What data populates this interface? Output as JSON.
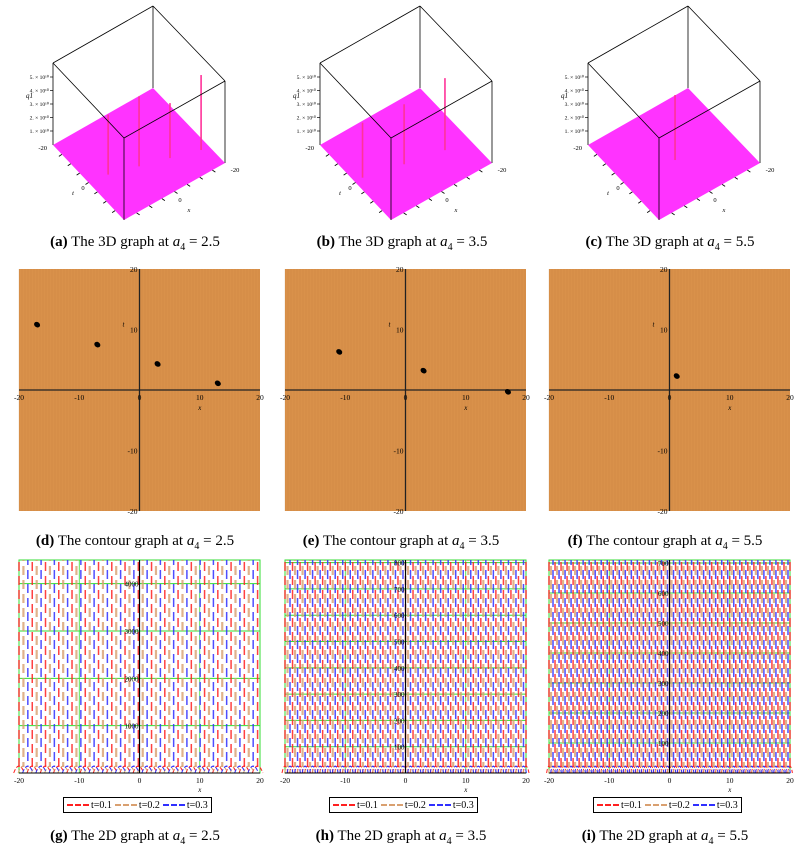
{
  "panels3d": [
    {
      "label": "(a)",
      "text": "The 3D graph at",
      "var": "a",
      "sub": "4",
      "value": "= 2.5",
      "solitons": [
        [
          -17,
          10.8,
          75
        ],
        [
          -7,
          7.5,
          55
        ],
        [
          3,
          4.3,
          70
        ],
        [
          13,
          1.1,
          60
        ]
      ]
    },
    {
      "label": "(b)",
      "text": "The 3D graph at",
      "var": "a",
      "sub": "4",
      "value": "= 3.5",
      "solitons": [
        [
          -11,
          6.3,
          72
        ],
        [
          3,
          3.2,
          60
        ],
        [
          17,
          -0.3,
          55
        ]
      ]
    },
    {
      "label": "(c)",
      "text": "The 3D graph at",
      "var": "a",
      "sub": "4",
      "value": "= 5.5",
      "solitons": [
        [
          1.2,
          2.3,
          65
        ]
      ]
    }
  ],
  "axis3d": {
    "zlabel": "q1",
    "zticks": [
      "1. × 10¹⁰",
      "2. × 10¹⁰",
      "3. × 10¹⁰",
      "4. × 10¹⁰",
      "5. × 10¹⁰"
    ],
    "t_ticks": [
      "-20",
      "0"
    ],
    "x_ticks": [
      "-20",
      "0"
    ],
    "xlabel": "x",
    "tlabel": "t"
  },
  "panelsContour": [
    {
      "label": "(d)",
      "text": "The contour graph at",
      "var": "a",
      "sub": "4",
      "value": "= 2.5",
      "dots": [
        [
          -17,
          10.8
        ],
        [
          -7,
          7.5
        ],
        [
          3,
          4.3
        ],
        [
          13,
          1.1
        ]
      ]
    },
    {
      "label": "(e)",
      "text": "The contour graph at",
      "var": "a",
      "sub": "4",
      "value": "= 3.5",
      "dots": [
        [
          -11,
          6.3
        ],
        [
          3,
          3.2
        ],
        [
          17,
          -0.3
        ]
      ]
    },
    {
      "label": "(f)",
      "text": "The contour graph at",
      "var": "a",
      "sub": "4",
      "value": "= 5.5",
      "dots": [
        [
          1.2,
          2.3
        ]
      ]
    }
  ],
  "contourAxis": {
    "xticks": [
      "-20",
      "-10",
      "0",
      "10",
      "20"
    ],
    "yticks": [
      "20",
      "10",
      "-10",
      "-20"
    ],
    "xlabel": "x",
    "ylabel": "t",
    "fill": "#d9914a",
    "dot": "#000000"
  },
  "panels2d": [
    {
      "label": "(g)",
      "text": "The 2D graph at",
      "var": "a",
      "sub": "4",
      "value": "= 2.5",
      "ymax": 4500,
      "yticks": [
        1000,
        2000,
        3000,
        4000
      ],
      "period": 2.2
    },
    {
      "label": "(h)",
      "text": "The 2D graph at",
      "var": "a",
      "sub": "4",
      "value": "= 3.5",
      "ymax": 810,
      "yticks": [
        100,
        200,
        300,
        400,
        500,
        600,
        700,
        800
      ],
      "period": 1.25
    },
    {
      "label": "(i)",
      "text": "The 2D graph at",
      "var": "a",
      "sub": "4",
      "value": "= 5.5",
      "ymax": 710,
      "yticks": [
        100,
        200,
        300,
        400,
        500,
        600,
        700
      ],
      "period": 1.0
    }
  ],
  "axis2d": {
    "xticks": [
      "-20",
      "-10",
      "0",
      "10",
      "20"
    ],
    "xlabel": "x",
    "grid": "#33dd33"
  },
  "legend": [
    {
      "label": "t=0.1",
      "color": "#ff2020"
    },
    {
      "label": "t=0.2",
      "color": "#d9a070"
    },
    {
      "label": "t=0.3",
      "color": "#3030ff"
    }
  ],
  "colors": {
    "surface": "#ff33ff",
    "spike": "#ff3399"
  }
}
